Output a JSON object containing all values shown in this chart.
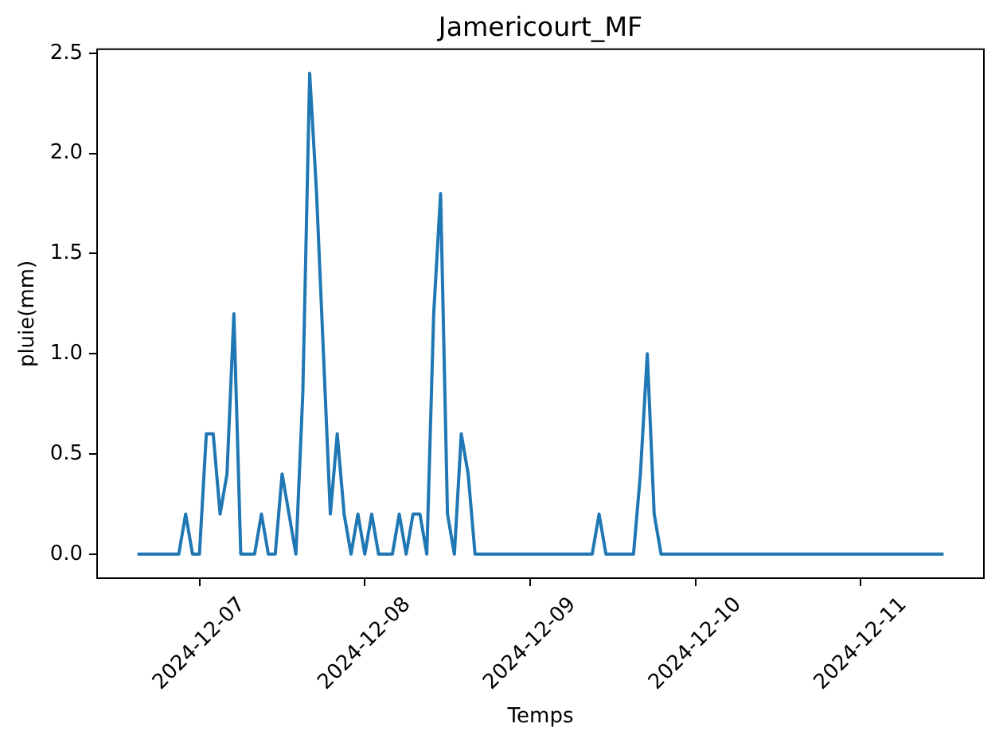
{
  "chart_data": {
    "type": "line",
    "title": "Jamericourt_MF",
    "xlabel": "Temps",
    "ylabel": "pluie(mm)",
    "x": [
      "2024-12-06T15:00",
      "2024-12-06T21:00",
      "2024-12-06T22:00",
      "2024-12-06T23:00",
      "2024-12-07T00:00",
      "2024-12-07T01:00",
      "2024-12-07T02:00",
      "2024-12-07T03:00",
      "2024-12-07T04:00",
      "2024-12-07T05:00",
      "2024-12-07T06:00",
      "2024-12-07T07:00",
      "2024-12-07T08:00",
      "2024-12-07T09:00",
      "2024-12-07T10:00",
      "2024-12-07T11:00",
      "2024-12-07T12:00",
      "2024-12-07T13:00",
      "2024-12-07T14:00",
      "2024-12-07T15:00",
      "2024-12-07T16:00",
      "2024-12-07T17:00",
      "2024-12-07T18:00",
      "2024-12-07T19:00",
      "2024-12-07T20:00",
      "2024-12-07T21:00",
      "2024-12-07T22:00",
      "2024-12-07T23:00",
      "2024-12-08T00:00",
      "2024-12-08T01:00",
      "2024-12-08T02:00",
      "2024-12-08T03:00",
      "2024-12-08T04:00",
      "2024-12-08T05:00",
      "2024-12-08T06:00",
      "2024-12-08T07:00",
      "2024-12-08T08:00",
      "2024-12-08T09:00",
      "2024-12-08T10:00",
      "2024-12-08T11:00",
      "2024-12-08T12:00",
      "2024-12-08T13:00",
      "2024-12-08T14:00",
      "2024-12-08T15:00",
      "2024-12-08T16:00",
      "2024-12-09T09:00",
      "2024-12-09T10:00",
      "2024-12-09T11:00",
      "2024-12-09T15:00",
      "2024-12-09T16:00",
      "2024-12-09T17:00",
      "2024-12-09T18:00",
      "2024-12-09T19:00",
      "2024-12-11T12:00"
    ],
    "series": [
      {
        "color": "#1f77b4",
        "values": [
          0,
          0,
          0.2,
          0,
          0,
          0.6,
          0.6,
          0.2,
          0.4,
          1.2,
          0,
          0,
          0,
          0.2,
          0,
          0,
          0.4,
          0.2,
          0,
          0.8,
          2.4,
          1.8,
          1.0,
          0.2,
          0.6,
          0.2,
          0,
          0.2,
          0,
          0.2,
          0,
          0,
          0,
          0.2,
          0,
          0.2,
          0.2,
          0,
          1.2,
          1.8,
          0.2,
          0,
          0.6,
          0.4,
          0,
          0,
          0.2,
          0,
          0,
          0.4,
          1.0,
          0.2,
          0,
          0
        ]
      }
    ],
    "xlim": [
      "2024-12-06T09:09",
      "2024-12-11T17:51"
    ],
    "xticks": [
      "2024-12-07",
      "2024-12-08",
      "2024-12-09",
      "2024-12-10",
      "2024-12-11"
    ],
    "ylim": [
      -0.12,
      2.52
    ],
    "yticks": [
      {
        "value": 0,
        "label": "0.0"
      },
      0.5,
      {
        "value": 1,
        "label": "1.0"
      },
      1.5,
      {
        "value": 2,
        "label": "2.0"
      },
      2.5
    ]
  }
}
